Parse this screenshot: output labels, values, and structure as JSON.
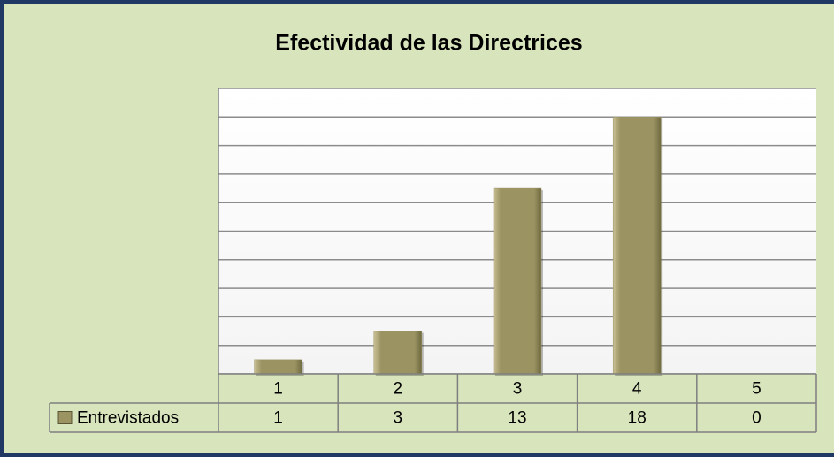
{
  "chart_data": {
    "type": "bar",
    "title": "Efectividad de las Directrices",
    "categories": [
      "1",
      "2",
      "3",
      "4",
      "5"
    ],
    "series": [
      {
        "name": "Entrevistados",
        "color": "#9b9362",
        "values": [
          1,
          3,
          13,
          18,
          0
        ]
      }
    ],
    "ylim": [
      0,
      20
    ],
    "yticks": [
      0,
      2,
      4,
      6,
      8,
      10,
      12,
      14,
      16,
      18,
      20
    ],
    "grid": true
  }
}
